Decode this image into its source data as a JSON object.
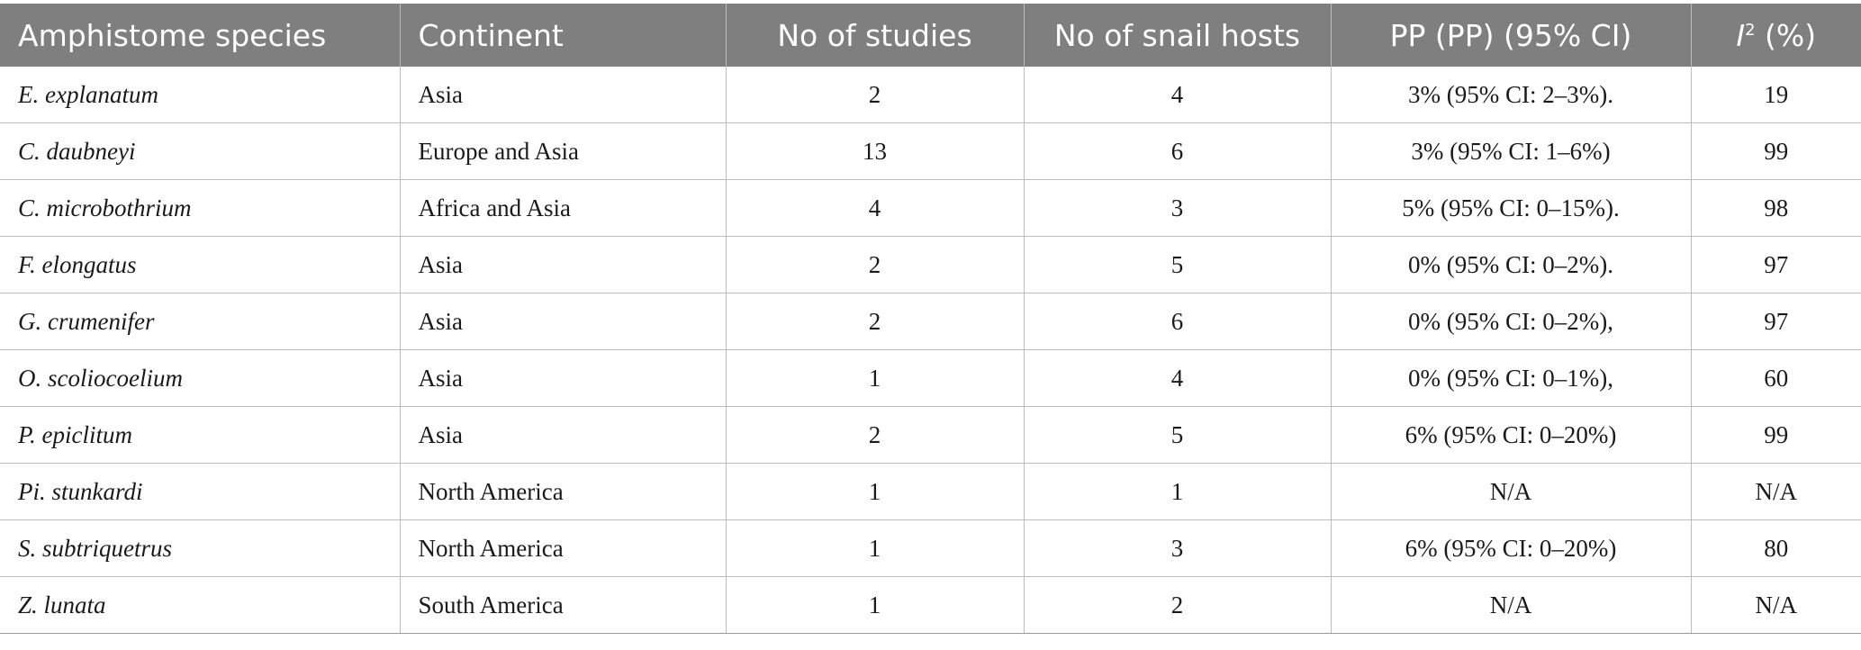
{
  "table": {
    "headers": {
      "species": "Amphistome species",
      "continent": "Continent",
      "studies": "No of studies",
      "snail_hosts": "No of snail hosts",
      "pp": "PP (PP) (95% CI)",
      "i2_letter": "I",
      "i2_sup": "2",
      "i2_unit": " (%)"
    },
    "rows": [
      {
        "species": "E. explanatum",
        "continent": "Asia",
        "studies": "2",
        "snail_hosts": "4",
        "pp": "3% (95% CI: 2–3%).",
        "i2": "19"
      },
      {
        "species": "C. daubneyi",
        "continent": "Europe and Asia",
        "studies": "13",
        "snail_hosts": "6",
        "pp": "3% (95% CI: 1–6%)",
        "i2": "99"
      },
      {
        "species": "C. microbothrium",
        "continent": "Africa and Asia",
        "studies": "4",
        "snail_hosts": "3",
        "pp": "5% (95% CI: 0–15%).",
        "i2": "98"
      },
      {
        "species": "F. elongatus",
        "continent": "Asia",
        "studies": "2",
        "snail_hosts": "5",
        "pp": "0% (95% CI: 0–2%).",
        "i2": "97"
      },
      {
        "species": "G. crumenifer",
        "continent": "Asia",
        "studies": "2",
        "snail_hosts": "6",
        "pp": "0% (95% CI: 0–2%),",
        "i2": "97"
      },
      {
        "species": "O. scoliocoelium",
        "continent": "Asia",
        "studies": "1",
        "snail_hosts": "4",
        "pp": "0% (95% CI: 0–1%),",
        "i2": "60"
      },
      {
        "species": "P. epiclitum",
        "continent": "Asia",
        "studies": "2",
        "snail_hosts": "5",
        "pp": "6% (95% CI: 0–20%)",
        "i2": "99"
      },
      {
        "species": "Pi. stunkardi",
        "continent": "North America",
        "studies": "1",
        "snail_hosts": "1",
        "pp": "N/A",
        "i2": "N/A"
      },
      {
        "species": "S. subtriquetrus",
        "continent": "North America",
        "studies": "1",
        "snail_hosts": "3",
        "pp": "6% (95% CI: 0–20%)",
        "i2": "80"
      },
      {
        "species": "Z. lunata",
        "continent": "South America",
        "studies": "1",
        "snail_hosts": "2",
        "pp": "N/A",
        "i2": "N/A"
      }
    ]
  }
}
